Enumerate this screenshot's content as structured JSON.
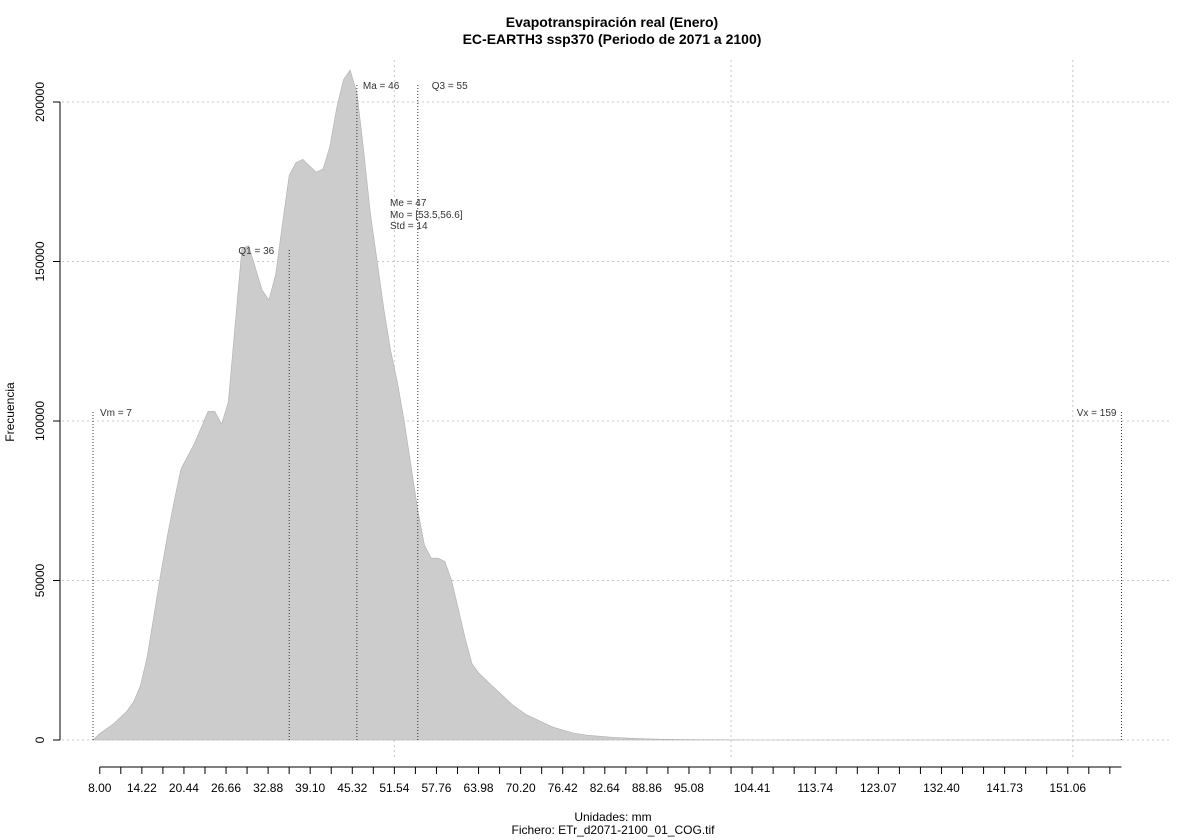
{
  "chart_data": {
    "type": "area",
    "title": "Evapotranspiración real (Enero)",
    "subtitle": "EC-EARTH3 ssp370 (Periodo de 2071 a 2100)",
    "xlabel": "Unidades: mm",
    "ylabel": "Frecuencia",
    "footer": "Fichero: ETr_d2071-2100_01_COG.tif",
    "xlim": [
      7,
      161
    ],
    "ylim": [
      0,
      210000
    ],
    "y_ticks": [
      0,
      50000,
      100000,
      150000,
      200000
    ],
    "y_tick_labels": [
      "0",
      "50000",
      "100000",
      "150000",
      "200000"
    ],
    "x_tick_labels": [
      {
        "value": 8.0,
        "label": "8.00"
      },
      {
        "value": 14.22,
        "label": "14.22"
      },
      {
        "value": 20.44,
        "label": "20.44"
      },
      {
        "value": 26.66,
        "label": "26.66"
      },
      {
        "value": 32.88,
        "label": "32.88"
      },
      {
        "value": 39.1,
        "label": "39.10"
      },
      {
        "value": 45.32,
        "label": "45.32"
      },
      {
        "value": 51.54,
        "label": "51.54"
      },
      {
        "value": 57.76,
        "label": "57.76"
      },
      {
        "value": 63.98,
        "label": "63.98"
      },
      {
        "value": 70.2,
        "label": "70.20"
      },
      {
        "value": 76.42,
        "label": "76.42"
      },
      {
        "value": 82.64,
        "label": "82.64"
      },
      {
        "value": 88.86,
        "label": "88.86"
      },
      {
        "value": 95.08,
        "label": "95.08"
      },
      {
        "value": 104.41,
        "label": "104.41"
      },
      {
        "value": 113.74,
        "label": "113.74"
      },
      {
        "value": 123.07,
        "label": "123.07"
      },
      {
        "value": 132.4,
        "label": "132.40"
      },
      {
        "value": 141.73,
        "label": "141.73"
      },
      {
        "value": 151.06,
        "label": "151.06"
      }
    ],
    "x_minor_step": 3.11,
    "grid_x": [
      51.54,
      101.3,
      151.8
    ],
    "grid": true,
    "fill_color": "#cccccc",
    "series": [
      {
        "x": [
          7,
          8,
          10,
          12,
          13,
          14,
          15,
          16,
          17,
          18,
          19,
          20,
          21,
          22,
          23,
          24,
          25,
          26,
          27,
          28,
          29,
          30,
          31,
          32,
          33,
          34,
          35,
          36,
          37,
          38,
          39,
          40,
          41,
          42,
          43,
          44,
          45,
          46,
          47,
          48,
          49,
          50,
          51,
          52,
          53,
          54,
          55,
          56,
          57,
          58,
          59,
          60,
          61,
          62,
          63,
          64,
          65,
          66,
          67,
          68,
          69,
          70,
          71,
          72,
          73,
          75,
          78,
          80,
          84,
          88,
          92,
          96,
          100,
          105,
          110,
          120,
          130,
          140,
          150,
          159
        ],
        "values": [
          0,
          2000,
          5000,
          9000,
          12000,
          17000,
          26000,
          39000,
          52000,
          64000,
          75000,
          85000,
          89000,
          93000,
          98000,
          103000,
          103000,
          99000,
          106000,
          130000,
          154000,
          155000,
          148000,
          141000,
          138000,
          146000,
          162000,
          177000,
          181000,
          182000,
          180000,
          178000,
          179000,
          186000,
          198000,
          207000,
          210000,
          203000,
          185000,
          165000,
          150000,
          135000,
          122000,
          112000,
          100000,
          86000,
          72000,
          61000,
          57000,
          57000,
          56000,
          50000,
          41000,
          32000,
          24000,
          21000,
          19000,
          17000,
          15000,
          13000,
          11000,
          9500,
          8000,
          7000,
          6000,
          4000,
          2200,
          1500,
          800,
          400,
          200,
          100,
          50,
          0,
          0,
          0,
          0,
          0,
          0,
          0
        ]
      }
    ],
    "annotations": [
      {
        "text": "Vm = 7",
        "x": 7
      },
      {
        "text": "Q1 = 36",
        "x": 36
      },
      {
        "text": "Ma = 46",
        "x": 46
      },
      {
        "text": "Q3 = 55",
        "x": 55
      },
      {
        "text": "Vx = 159",
        "x": 159
      }
    ],
    "stats_text": [
      "Me = 47",
      "Mo = [53.5,56.6]",
      "Std = 14"
    ]
  }
}
